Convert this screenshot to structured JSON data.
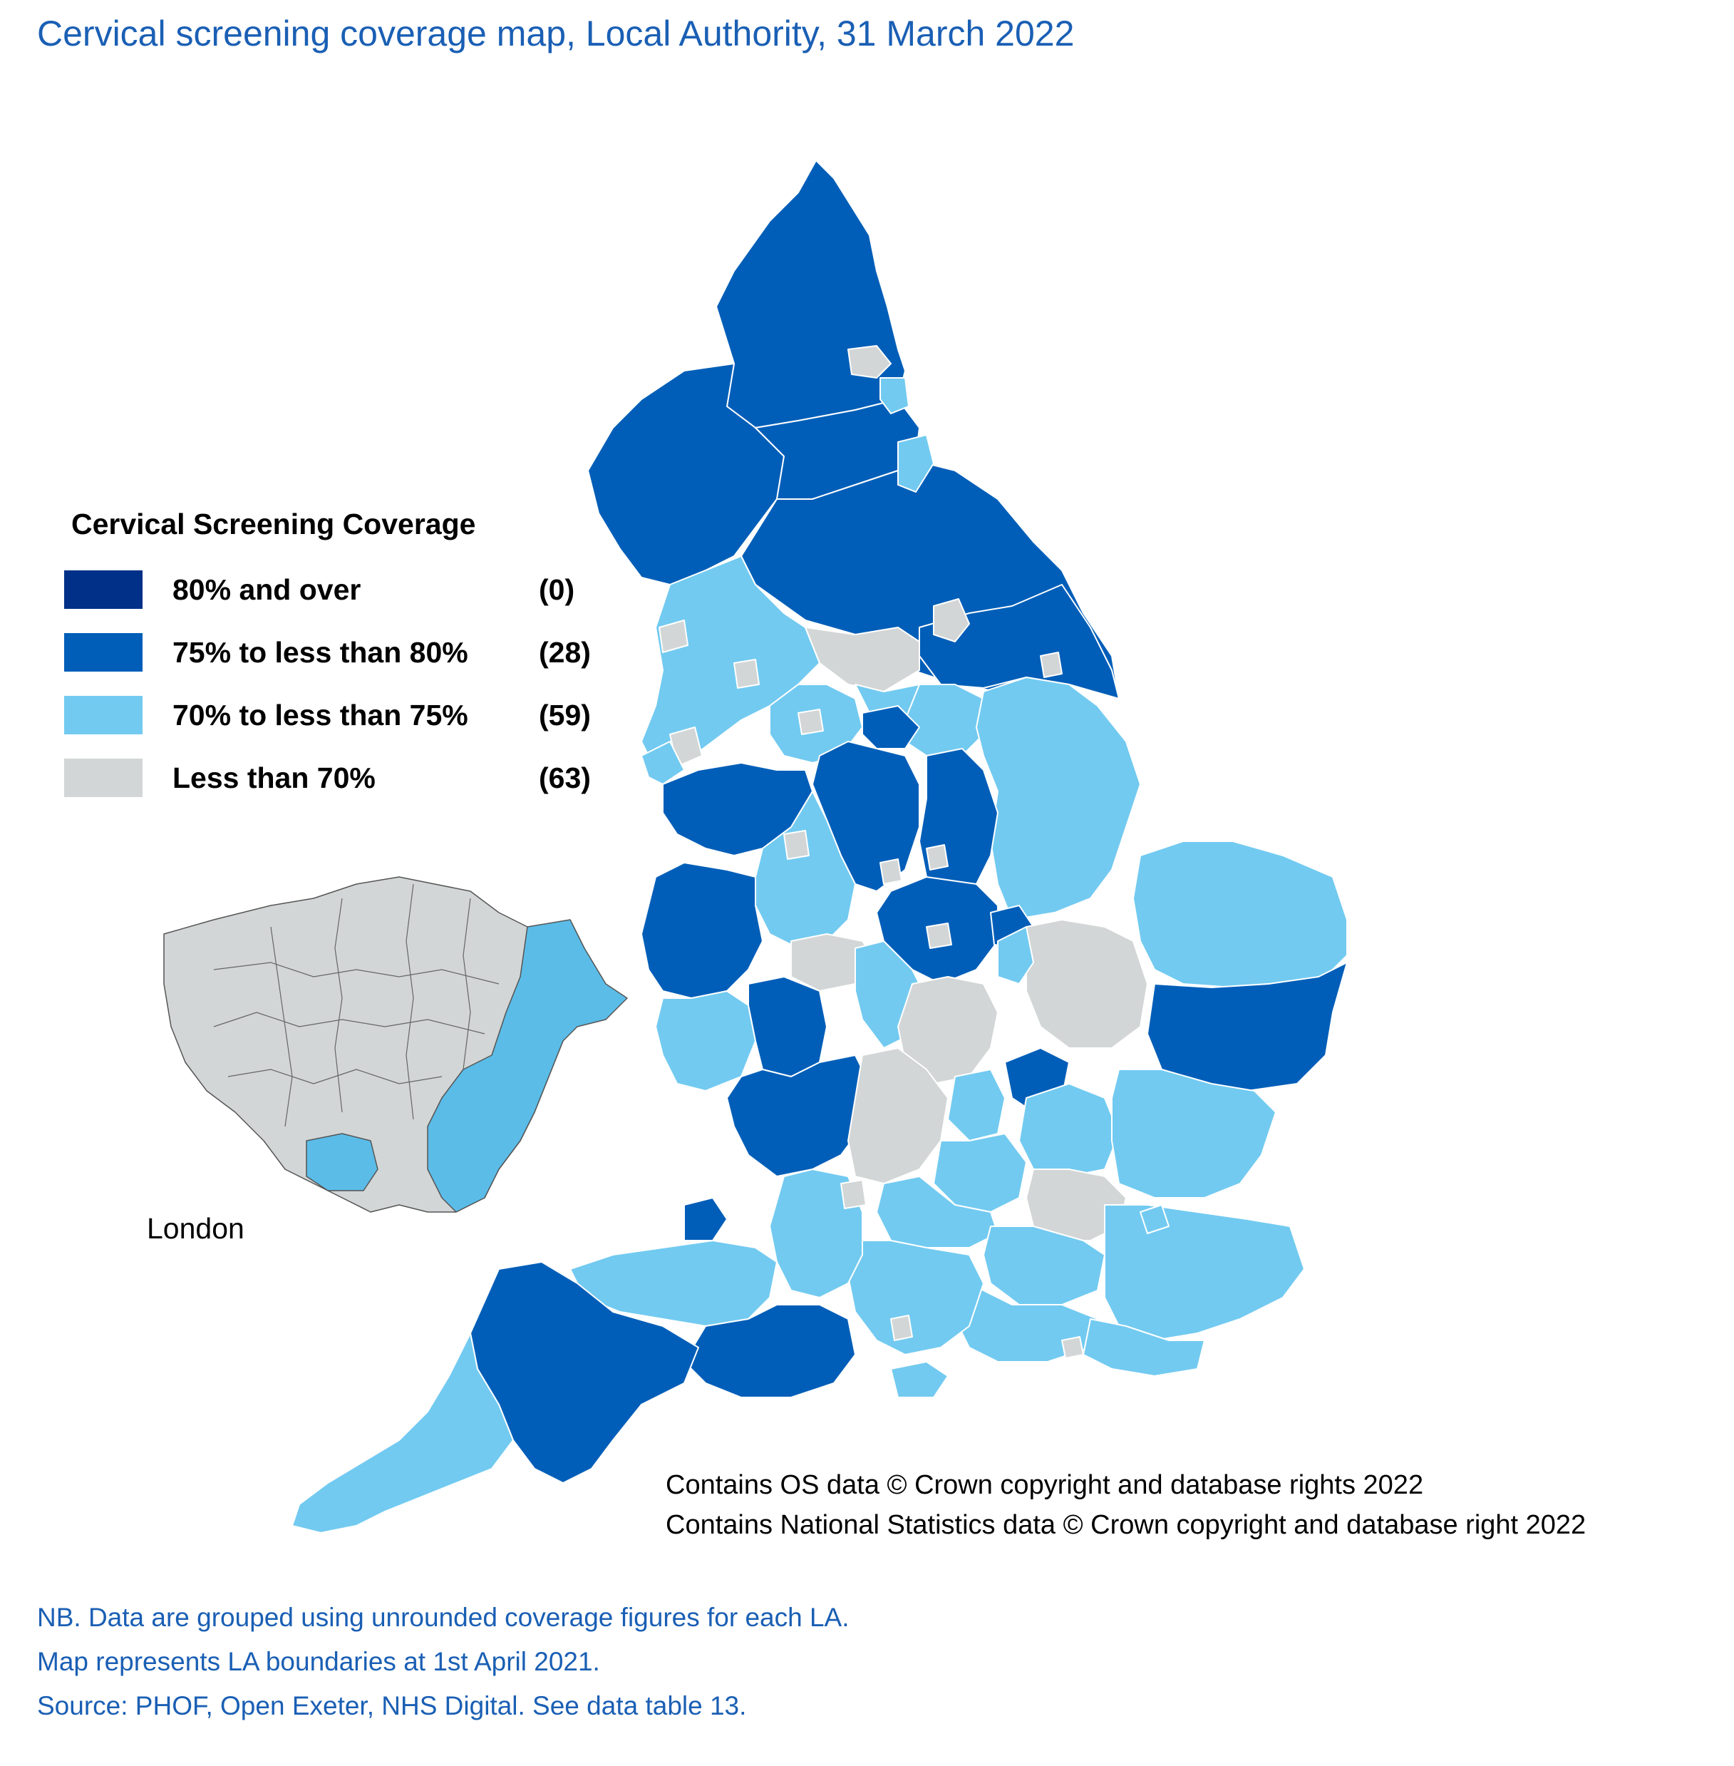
{
  "title": "Cervical screening coverage map, Local Authority, 31 March 2022",
  "colors": {
    "band_80_plus": "#003087",
    "band_75_80": "#005eb8",
    "band_70_75": "#72caf0",
    "band_below_70": "#d3d6d6",
    "boundary": "#ffffff",
    "title_text": "#1a5fb4"
  },
  "legend": {
    "heading": "Cervical Screening Coverage",
    "items": [
      {
        "label": "80% and over",
        "count": "(0)",
        "color_key": "band_80_plus"
      },
      {
        "label": "75% to less than 80%",
        "count": "(28)",
        "color_key": "band_75_80"
      },
      {
        "label": "70% to less than 75%",
        "count": "(59)",
        "color_key": "band_70_75"
      },
      {
        "label": "Less than 70%",
        "count": "(63)",
        "color_key": "band_below_70"
      }
    ]
  },
  "inset": {
    "label": "London"
  },
  "credits": {
    "line1": "Contains OS data © Crown copyright and database rights 2022",
    "line2": "Contains National Statistics data © Crown copyright and database right 2022"
  },
  "notes": {
    "line1": "NB. Data are grouped using unrounded coverage figures for each LA.",
    "line2": "Map represents LA boundaries at 1st April 2021.",
    "line3": "Source: PHOF, Open Exeter, NHS Digital. See data table 13."
  }
}
